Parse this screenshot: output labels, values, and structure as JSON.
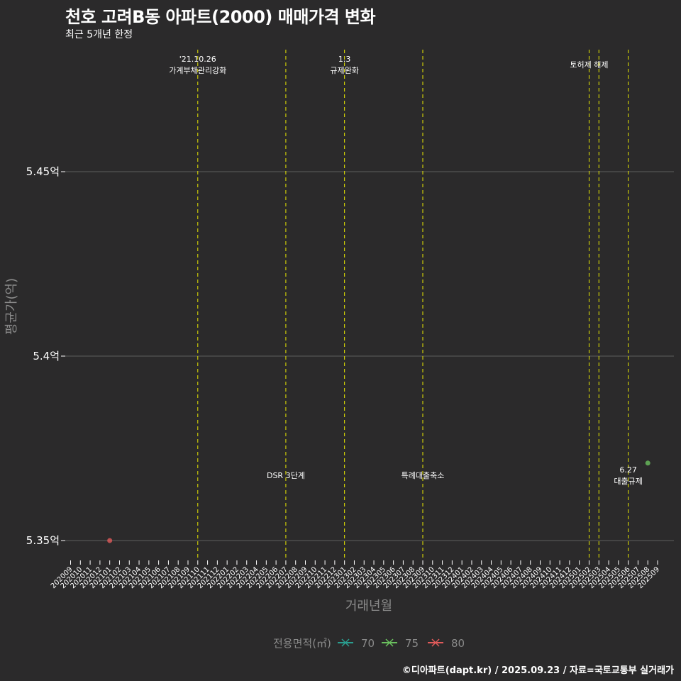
{
  "header": {
    "title": "천호 고려B동 아파트(2000) 매매가격 변화",
    "subtitle": "최근 5개년 한정"
  },
  "caption": "©디아파트(dapt.kr) / 2025.09.23 / 자료=국토교통부 실거래가",
  "chart_data": {
    "type": "scatter",
    "xlabel": "거래년월",
    "ylabel": "평균가(억)",
    "categories": [
      "202009",
      "202010",
      "202011",
      "202012",
      "202101",
      "202102",
      "202103",
      "202104",
      "202105",
      "202106",
      "202107",
      "202108",
      "202109",
      "202110",
      "202111",
      "202112",
      "202201",
      "202202",
      "202203",
      "202204",
      "202205",
      "202206",
      "202207",
      "202208",
      "202209",
      "202210",
      "202211",
      "202212",
      "202301",
      "202302",
      "202303",
      "202304",
      "202305",
      "202306",
      "202307",
      "202308",
      "202309",
      "202310",
      "202311",
      "202312",
      "202401",
      "202402",
      "202403",
      "202404",
      "202405",
      "202406",
      "202407",
      "202408",
      "202409",
      "202410",
      "202411",
      "202412",
      "202501",
      "202502",
      "202503",
      "202504",
      "202505",
      "202506",
      "202507",
      "202508",
      "202509"
    ],
    "yticks": [
      5.35,
      5.4,
      5.45
    ],
    "ytick_labels": [
      "5.35억",
      "5.4억",
      "5.45억"
    ],
    "ylim": [
      5.3467,
      5.4795
    ],
    "series": [
      {
        "name": "70",
        "color": "#2a9d8f",
        "points": []
      },
      {
        "name": "75",
        "color": "#6abf5e",
        "points": [
          {
            "x": "202508",
            "y": 5.371
          }
        ]
      },
      {
        "name": "80",
        "color": "#e05a5a",
        "points": [
          {
            "x": "202101",
            "y": 5.35
          }
        ]
      }
    ],
    "events": [
      {
        "x": "202110",
        "label_lines": [
          "'21.10.26",
          "가계부채관리강화"
        ],
        "position": "top"
      },
      {
        "x": "202207",
        "label_lines": [
          "DSR 3단계"
        ],
        "position": "bottom"
      },
      {
        "x": "202301",
        "label_lines": [
          "1.3",
          "규제완화"
        ],
        "position": "top"
      },
      {
        "x": "202309",
        "label_lines": [
          "특례대출축소"
        ],
        "position": "bottom"
      },
      {
        "x": "202502",
        "label_lines": [
          "토허제 해제"
        ],
        "position": "top"
      },
      {
        "x": "202503",
        "label_lines": [],
        "position": "top"
      },
      {
        "x": "202506",
        "label_lines": [
          "6.27",
          "대출규제"
        ],
        "position": "bottom"
      }
    ],
    "legend": {
      "title": "전용면적(㎡)",
      "position": "bottom",
      "items": [
        "70",
        "75",
        "80"
      ]
    },
    "event_line_color": "#e8e800",
    "grid_color": "#5e5e5e"
  }
}
